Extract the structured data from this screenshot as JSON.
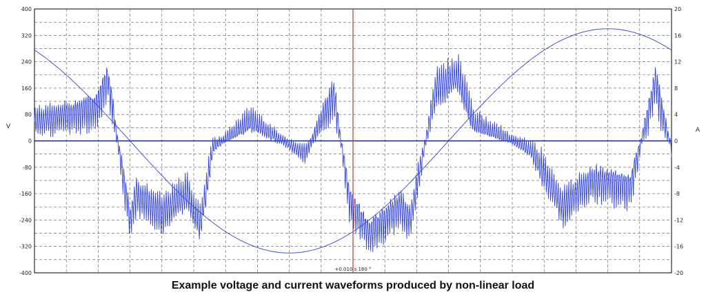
{
  "chart_data": {
    "type": "line",
    "title": "Example voltage and current waveforms produced by non-linear load",
    "y_left": {
      "label": "V",
      "min": -400,
      "max": 400,
      "ticks": [
        400,
        320,
        240,
        160,
        80,
        0,
        -80,
        -160,
        -240,
        -320,
        -400
      ]
    },
    "y_right": {
      "label": "A",
      "min": -20,
      "max": 20,
      "ticks": [
        20,
        16,
        12,
        8,
        4,
        0,
        -4,
        -8,
        -12,
        -16,
        -20
      ]
    },
    "x": {
      "min": 0,
      "max": 0.02
    },
    "grid": true,
    "cursor": {
      "x": 0.01,
      "label": "+0.010 s 180 °"
    },
    "series": [
      {
        "axis": "left",
        "color": "#3344dd",
        "shape": "sine",
        "amplitude": 340,
        "phase_deg": 36,
        "x": [
          0,
          0.001,
          0.002,
          0.003,
          0.004,
          0.005,
          0.006,
          0.007,
          0.008,
          0.009,
          0.01,
          0.011,
          0.012,
          0.013,
          0.014,
          0.015,
          0.016,
          0.017,
          0.018,
          0.019,
          0.02
        ],
        "y": [
          200,
          90,
          -30,
          -150,
          -240,
          -300,
          -335,
          -340,
          -340,
          -300,
          -200,
          -120,
          -20,
          80,
          200,
          290,
          330,
          340,
          330,
          270,
          200
        ]
      },
      {
        "axis": "right",
        "color": "#3344dd",
        "x": [
          0,
          0.0012,
          0.0019,
          0.0023,
          0.003,
          0.0032,
          0.004,
          0.0048,
          0.0052,
          0.0056,
          0.0068,
          0.0078,
          0.0085,
          0.0094,
          0.0099,
          0.0105,
          0.0115,
          0.0118,
          0.0126,
          0.0133,
          0.0138,
          0.0146,
          0.0156,
          0.0166,
          0.0175,
          0.0187,
          0.0192,
          0.0195,
          0.0197,
          0.02
        ],
        "y": [
          3,
          4,
          5,
          9.5,
          -12,
          -8,
          -11,
          -8,
          -13,
          -1,
          3,
          0,
          -2,
          7,
          -9,
          -14,
          -10,
          -12,
          8,
          10,
          2.5,
          1,
          -1.5,
          -10,
          -6,
          -7,
          3,
          9,
          4,
          -1
        ]
      }
    ]
  }
}
